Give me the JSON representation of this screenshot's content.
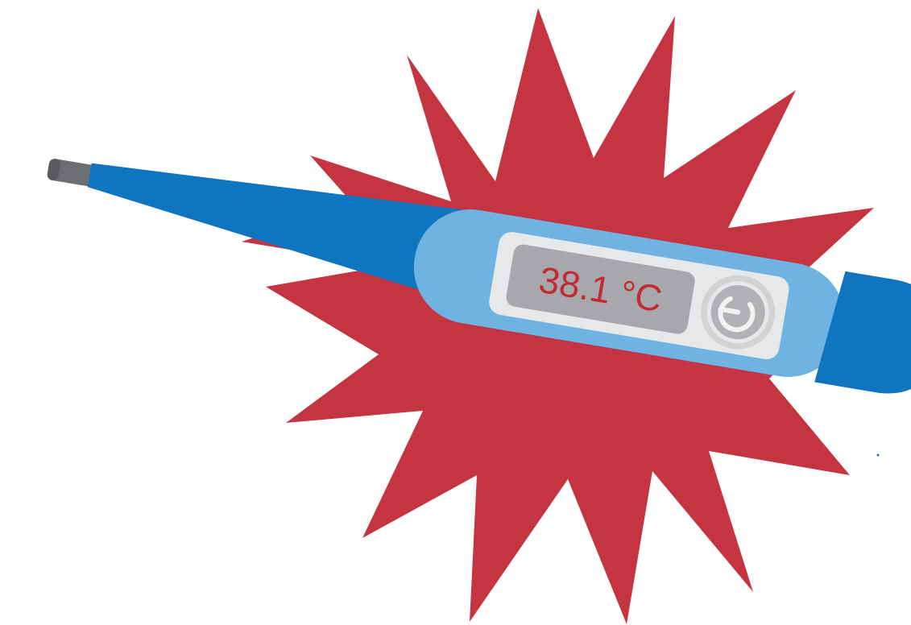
{
  "thermometer": {
    "reading": "38.1 °C",
    "power_icon": "power-icon"
  },
  "colors": {
    "burst": "#c53441",
    "body_dark": "#1075bf",
    "body_light": "#6fb3e3",
    "panel": "#e7e8ea",
    "screen": "#a6a8ab",
    "reading_text": "#c42a33",
    "tip": "#6d6e71",
    "button_ring": "#d1d3d4",
    "button_face": "#b0b2b5",
    "background": "#ffffff"
  }
}
